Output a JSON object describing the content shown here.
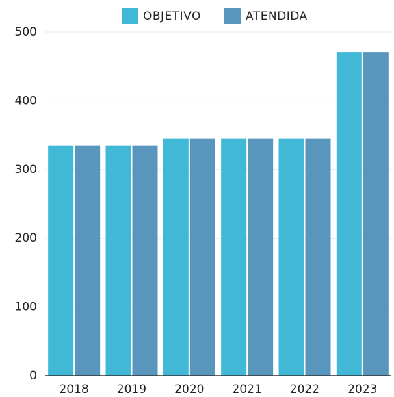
{
  "chart_data": {
    "type": "bar",
    "categories": [
      "2018",
      "2019",
      "2020",
      "2021",
      "2022",
      "2023"
    ],
    "series": [
      {
        "name": "OBJETIVO",
        "color": "#41b8d5",
        "values": [
          335,
          335,
          345,
          345,
          345,
          471
        ]
      },
      {
        "name": "ATENDIDA",
        "color": "#5896bd",
        "values": [
          335,
          335,
          345,
          345,
          345,
          471
        ]
      }
    ],
    "ylim": [
      0,
      500
    ],
    "yticks": [
      0,
      100,
      200,
      300,
      400,
      500
    ],
    "grid": true,
    "legend": "top"
  }
}
